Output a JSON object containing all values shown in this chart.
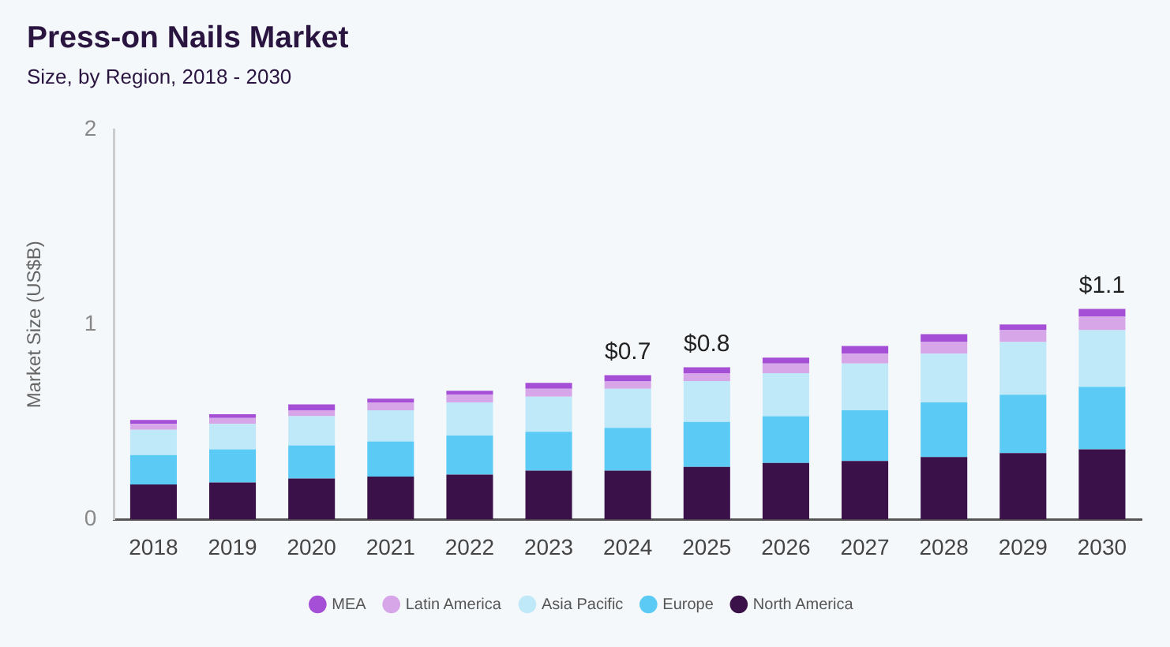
{
  "chart_data": {
    "type": "bar",
    "title": "Press-on Nails Market",
    "subtitle": "Size, by Region, 2018 - 2030",
    "ylabel": "Market Size (US$B)",
    "categories": [
      "2018",
      "2019",
      "2020",
      "2021",
      "2022",
      "2023",
      "2024",
      "2025",
      "2026",
      "2027",
      "2028",
      "2029",
      "2030"
    ],
    "stacked": true,
    "ylim": [
      0,
      2
    ],
    "yticks": [
      0,
      1,
      2
    ],
    "legend": "bottom",
    "series": [
      {
        "name": "North America",
        "color": "#3a1149",
        "values": [
          0.18,
          0.19,
          0.21,
          0.22,
          0.23,
          0.25,
          0.25,
          0.27,
          0.29,
          0.3,
          0.32,
          0.34,
          0.36
        ]
      },
      {
        "name": "Europe",
        "color": "#5bcbf5",
        "values": [
          0.15,
          0.17,
          0.17,
          0.18,
          0.2,
          0.2,
          0.22,
          0.23,
          0.24,
          0.26,
          0.28,
          0.3,
          0.32
        ]
      },
      {
        "name": "Asia Pacific",
        "color": "#bfe9f9",
        "values": [
          0.13,
          0.13,
          0.15,
          0.16,
          0.17,
          0.18,
          0.2,
          0.21,
          0.22,
          0.24,
          0.25,
          0.27,
          0.29
        ]
      },
      {
        "name": "Latin America",
        "color": "#d7a6e8",
        "values": [
          0.03,
          0.03,
          0.03,
          0.04,
          0.04,
          0.04,
          0.04,
          0.04,
          0.05,
          0.05,
          0.06,
          0.06,
          0.07
        ]
      },
      {
        "name": "MEA",
        "color": "#a54ed6",
        "values": [
          0.02,
          0.02,
          0.03,
          0.02,
          0.02,
          0.03,
          0.03,
          0.03,
          0.03,
          0.04,
          0.04,
          0.03,
          0.04
        ]
      }
    ],
    "totals": [
      null,
      null,
      null,
      null,
      null,
      null,
      "$0.7",
      "$0.8",
      null,
      null,
      null,
      null,
      "$1.1"
    ]
  }
}
